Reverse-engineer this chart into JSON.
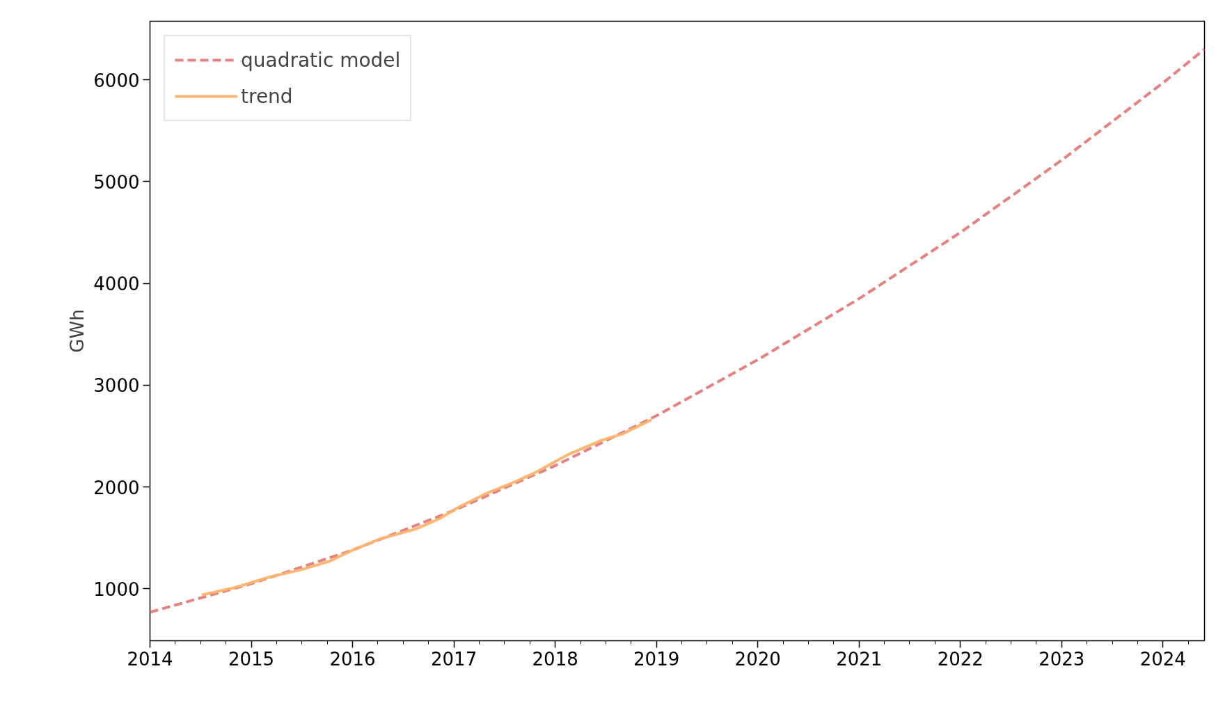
{
  "chart_data": {
    "type": "line",
    "ylabel": "GWh",
    "series": [
      {
        "name": "quadratic model",
        "color": "#e47a7a",
        "line_style": "dashed",
        "x": [
          2014,
          2015,
          2016,
          2017,
          2018,
          2019,
          2020,
          2021,
          2022,
          2023,
          2024,
          2024.41
        ],
        "values": [
          770,
          1050,
          1380,
          1770,
          2210,
          2700,
          3250,
          3850,
          4500,
          5210,
          5970,
          6300
        ]
      },
      {
        "name": "trend",
        "color": "#fdb36b",
        "line_style": "solid",
        "x": [
          2014.51,
          2014.83,
          2015.16,
          2015.5,
          2015.77,
          2016.0,
          2016.27,
          2016.63,
          2016.86,
          2017.06,
          2017.33,
          2017.53,
          2017.8,
          2018.13,
          2018.46,
          2018.66,
          2018.95
        ],
        "values": [
          940,
          1010,
          1110,
          1190,
          1270,
          1380,
          1490,
          1590,
          1690,
          1810,
          1940,
          2020,
          2140,
          2320,
          2460,
          2520,
          2660
        ]
      }
    ],
    "xlim": [
      2014,
      2024.41
    ],
    "xticks": [
      2014,
      2015,
      2016,
      2017,
      2018,
      2019,
      2020,
      2021,
      2022,
      2023,
      2024
    ],
    "ylim": [
      490,
      6575
    ],
    "yticks": [
      1000,
      2000,
      3000,
      4000,
      5000,
      6000
    ],
    "grid": false,
    "legend": "top left",
    "marker": "none"
  }
}
